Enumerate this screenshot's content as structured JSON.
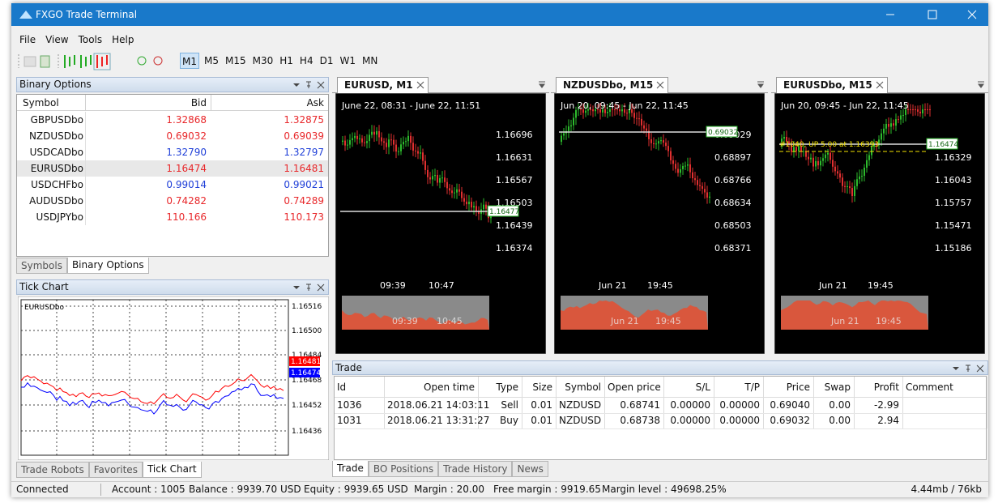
{
  "window": {
    "title": "FXGO Trade Terminal"
  },
  "menu": [
    "File",
    "View",
    "Tools",
    "Help"
  ],
  "timeframes": [
    "M1",
    "M5",
    "M15",
    "M30",
    "H1",
    "H4",
    "D1",
    "W1",
    "MN"
  ],
  "binary_options": {
    "title": "Binary Options",
    "columns": [
      "Symbol",
      "Bid",
      "Ask"
    ],
    "rows": [
      [
        "GBPUSDbo",
        "1.32868",
        "1.32875"
      ],
      [
        "NZDUSDbo",
        "0.69032",
        "0.69039"
      ],
      [
        "USDCADbo",
        "1.32790",
        "1.32797"
      ],
      [
        "EURUSDbo",
        "1.16474",
        "1.16481"
      ],
      [
        "USDCHFbo",
        "0.99014",
        "0.99021"
      ],
      [
        "AUDUSDbo",
        "0.74282",
        "0.74289"
      ],
      [
        "USDJPYbo",
        "110.166",
        "110.173"
      ]
    ],
    "row_colors": [
      "#e8272a",
      "#e8272a",
      "#1f3fd8",
      "#e8272a",
      "#1f3fd8",
      "#e8272a",
      "#e8272a"
    ],
    "tabs": [
      "Symbols",
      "Binary Options"
    ]
  },
  "tick_chart": {
    "title": "Tick Chart",
    "symbol": "EURUSDbo",
    "price_labels": [
      "1.16516",
      "1.16500",
      "1.16484",
      "1.16468",
      "1.16452",
      "1.16436"
    ],
    "tags": [
      {
        "label": "1.16481",
        "color": "#ff0000"
      },
      {
        "label": "1.16474",
        "color": "#0000ff"
      }
    ],
    "tabs": [
      "Trade Robots",
      "Favorites",
      "Tick Chart"
    ]
  },
  "charts": [
    {
      "tab": "EURUSD, M1",
      "range": "June 22, 08:31 - June 22, 11:51",
      "prices": [
        "1.16696",
        "1.16631",
        "1.16567",
        "1.16503",
        "1.16439",
        "1.16374"
      ],
      "current": "1.16477",
      "times": [
        "09:39",
        "10:47"
      ],
      "mini_times": [
        "09:39",
        "10:45"
      ]
    },
    {
      "tab": "NZDUSDbo, M15",
      "range": "Jun 20, 09:45 - Jun 22, 11:45",
      "prices": [
        "0.69029",
        "0.68897",
        "0.68766",
        "0.68634",
        "0.68503",
        "0.68371"
      ],
      "current": "0.69032",
      "times": [
        "Jun 21",
        "19:45"
      ],
      "mini_times": [
        "Jun 21",
        "19:45"
      ]
    },
    {
      "tab": "EURUSDbo, M15",
      "range": "Jun 20, 09:45 - Jun 22, 11:45",
      "prices": [
        "1.16329",
        "1.16043",
        "1.15757",
        "1.15471",
        "1.15186"
      ],
      "current": "1.16474",
      "annotation": "#1040, UP 5.00 at 1.16393",
      "times": [
        "Jun 21",
        "19:45"
      ],
      "mini_times": [
        "Jun 21",
        "19:45"
      ]
    }
  ],
  "trade": {
    "title": "Trade",
    "columns": [
      "Id",
      "Open time",
      "Type",
      "Size",
      "Symbol",
      "Open price",
      "S/L",
      "T/P",
      "Price",
      "Swap",
      "Profit",
      "Comment"
    ],
    "rows": [
      [
        "1036",
        "2018.06.21 14:03:11",
        "Sell",
        "0.01",
        "NZDUSD",
        "0.68741",
        "0.00000",
        "0.00000",
        "0.69040",
        "0.00",
        "-2.99"
      ],
      [
        "1031",
        "2018.06.21 13:31:27",
        "Buy",
        "0.01",
        "NZDUSD",
        "0.68738",
        "0.00000",
        "0.00000",
        "0.69032",
        "0.00",
        "2.94"
      ]
    ],
    "tabs": [
      "Trade",
      "BO Positions",
      "Trade History",
      "News"
    ]
  },
  "status": [
    "Connected",
    "Account : 1005",
    "Balance : 9939.70 USD",
    "Equity : 9939.65 USD",
    "Margin : 20.00",
    "Free margin : 9919.65",
    "Margin level : 49698.25%",
    "4.44mb / 76kb"
  ]
}
